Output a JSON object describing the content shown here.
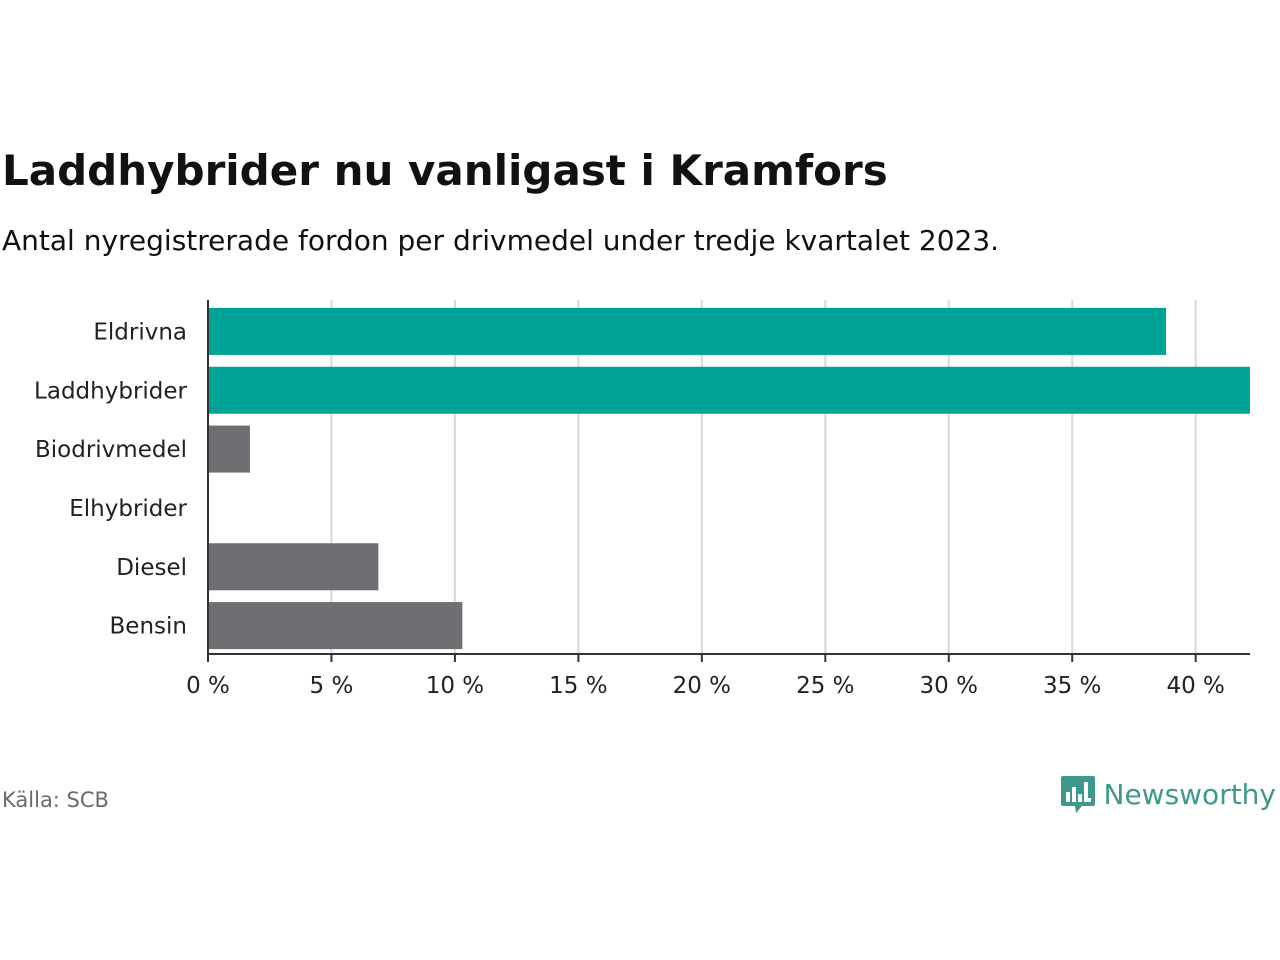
{
  "title": "Laddhybrider nu vanligast i Kramfors",
  "subtitle": "Antal nyregistrerade fordon per drivmedel under tredje kvartalet 2023.",
  "source": "Källa: SCB",
  "brand": {
    "name": "Newsworthy",
    "icon": "bar-chart-speech-bubble-icon",
    "color": "#3d9a8b"
  },
  "colors": {
    "highlight": "#00a398",
    "default": "#6e6e73",
    "grid": "#d9d9d9",
    "axis": "#333333"
  },
  "chart_data": {
    "type": "bar",
    "orientation": "horizontal",
    "title": "Laddhybrider nu vanligast i Kramfors",
    "xlabel": "",
    "ylabel": "",
    "unit": "%",
    "xlim": [
      0,
      42.2
    ],
    "ticks": [
      0,
      5,
      10,
      15,
      20,
      25,
      30,
      35,
      40
    ],
    "tick_labels": [
      "0 %",
      "5 %",
      "10 %",
      "15 %",
      "20 %",
      "25 %",
      "30 %",
      "35 %",
      "40 %"
    ],
    "grid": true,
    "categories": [
      "Eldrivna",
      "Laddhybrider",
      "Biodrivmedel",
      "Elhybrider",
      "Diesel",
      "Bensin"
    ],
    "values": [
      38.8,
      42.2,
      1.7,
      0,
      6.9,
      10.3
    ],
    "highlight": [
      true,
      true,
      false,
      false,
      false,
      false
    ]
  }
}
